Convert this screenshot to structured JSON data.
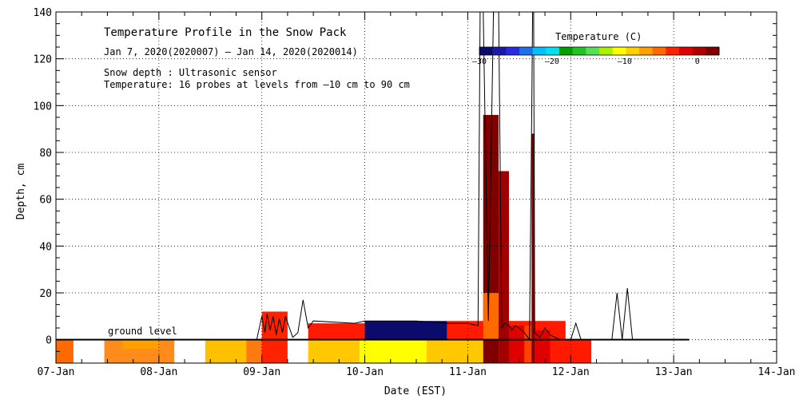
{
  "chart_data": {
    "type": "heatmap",
    "title": "Temperature Profile in the Snow Pack",
    "subtitle": "Jan  7, 2020(2020007) – Jan 14, 2020(2020014)",
    "notes": [
      "Snow depth : Ultrasonic sensor",
      "Temperature: 16 probes at levels from –10 cm to 90 cm"
    ],
    "xlabel": "Date (EST)",
    "ylabel": "Depth, cm",
    "xlim": [
      0,
      7
    ],
    "ylim": [
      -10,
      140
    ],
    "x_ticks": [
      {
        "x": 0,
        "label": "07-Jan"
      },
      {
        "x": 1,
        "label": "08-Jan"
      },
      {
        "x": 2,
        "label": "09-Jan"
      },
      {
        "x": 3,
        "label": "10-Jan"
      },
      {
        "x": 4,
        "label": "11-Jan"
      },
      {
        "x": 5,
        "label": "12-Jan"
      },
      {
        "x": 6,
        "label": "13-Jan"
      },
      {
        "x": 7,
        "label": "14-Jan"
      }
    ],
    "y_ticks": [
      {
        "y": 0,
        "label": "0"
      },
      {
        "y": 20,
        "label": "20"
      },
      {
        "y": 40,
        "label": "40"
      },
      {
        "y": 60,
        "label": "60"
      },
      {
        "y": 80,
        "label": "80"
      },
      {
        "y": 100,
        "label": "100"
      },
      {
        "y": 120,
        "label": "120"
      },
      {
        "y": 140,
        "label": "140"
      }
    ],
    "grid": true,
    "ground_level_label": "ground level",
    "colorbar": {
      "title": "Temperature (C)",
      "range": [
        -30,
        3
      ],
      "tick_labels": [
        {
          "v": -30,
          "label": "–30"
        },
        {
          "v": -20,
          "label": "–20"
        },
        {
          "v": -10,
          "label": "–10"
        },
        {
          "v": 0,
          "label": "0"
        }
      ],
      "colors": [
        "#0b0b6e",
        "#1a1aa8",
        "#2a2ae6",
        "#1f6fe8",
        "#00bfff",
        "#00e0f0",
        "#00a000",
        "#22c422",
        "#55e055",
        "#aaf000",
        "#ffff00",
        "#ffd000",
        "#ffa000",
        "#ff6a00",
        "#ff2200",
        "#e00000",
        "#b00000",
        "#800000"
      ]
    },
    "temperature_cells": [
      {
        "x0": 0.0,
        "x1": 0.17,
        "y0": -10,
        "y1": 0,
        "color": "#ff6a00"
      },
      {
        "x0": 0.47,
        "x1": 1.15,
        "y0": -10,
        "y1": 0,
        "color": "#ff8c1a"
      },
      {
        "x0": 0.65,
        "x1": 1.0,
        "y0": -4,
        "y1": 0,
        "color": "#ffa000"
      },
      {
        "x0": 1.45,
        "x1": 2.0,
        "y0": -10,
        "y1": 0,
        "color": "#ffc000"
      },
      {
        "x0": 1.85,
        "x1": 2.25,
        "y0": -10,
        "y1": 0,
        "color": "#ff7a10"
      },
      {
        "x0": 2.0,
        "x1": 2.25,
        "y0": -10,
        "y1": 12,
        "color": "#ff2200"
      },
      {
        "x0": 2.25,
        "x1": 2.45,
        "y0": -10,
        "y1": 0,
        "color": "#ffffff"
      },
      {
        "x0": 2.45,
        "x1": 2.95,
        "y0": -10,
        "y1": 0,
        "color": "#ffc800"
      },
      {
        "x0": 2.45,
        "x1": 3.0,
        "y0": 0,
        "y1": 7,
        "color": "#ff1a00"
      },
      {
        "x0": 2.95,
        "x1": 3.95,
        "y0": -10,
        "y1": 0,
        "color": "#ffff00"
      },
      {
        "x0": 3.0,
        "x1": 3.8,
        "y0": 0,
        "y1": 8,
        "color": "#0b0b6e"
      },
      {
        "x0": 3.8,
        "x1": 4.95,
        "y0": 0,
        "y1": 8,
        "color": "#ff1a00"
      },
      {
        "x0": 3.6,
        "x1": 4.4,
        "y0": -10,
        "y1": 0,
        "color": "#ffc800"
      },
      {
        "x0": 4.4,
        "x1": 5.0,
        "y0": -10,
        "y1": 0,
        "color": "#ff4000"
      },
      {
        "x0": 4.7,
        "x1": 5.2,
        "y0": -10,
        "y1": 0,
        "color": "#ff1a00"
      },
      {
        "x0": 4.15,
        "x1": 4.3,
        "y0": -10,
        "y1": 96,
        "color": "#800000"
      },
      {
        "x0": 4.15,
        "x1": 4.3,
        "y0": 0,
        "y1": 20,
        "color": "#ff6a00"
      },
      {
        "x0": 4.3,
        "x1": 4.4,
        "y0": -10,
        "y1": 72,
        "color": "#a00000"
      },
      {
        "x0": 4.4,
        "x1": 4.55,
        "y0": -10,
        "y1": 6,
        "color": "#e00000"
      },
      {
        "x0": 4.55,
        "x1": 4.62,
        "y0": -10,
        "y1": 6,
        "color": "#ff4000"
      },
      {
        "x0": 4.62,
        "x1": 4.65,
        "y0": -10,
        "y1": 88,
        "color": "#800000"
      },
      {
        "x0": 4.65,
        "x1": 4.8,
        "y0": -10,
        "y1": 4,
        "color": "#e00000"
      }
    ],
    "snow_depth": {
      "name": "Snow depth",
      "x": [
        0.0,
        1.95,
        2.0,
        2.03,
        2.05,
        2.08,
        2.11,
        2.14,
        2.17,
        2.2,
        2.23,
        2.26,
        2.3,
        2.35,
        2.4,
        2.45,
        2.5,
        2.9,
        3.0,
        3.5,
        3.8,
        4.0,
        4.1,
        4.12,
        4.15,
        4.2,
        4.25,
        4.3,
        4.33,
        4.36,
        4.4,
        4.43,
        4.46,
        4.5,
        4.55,
        4.6,
        4.62,
        4.63,
        4.64,
        4.65,
        4.7,
        4.75,
        4.8,
        4.9,
        5.0,
        5.05,
        5.1,
        5.2,
        5.4,
        5.45,
        5.5,
        5.55,
        5.6,
        5.65,
        6.15
      ],
      "y": [
        0,
        0,
        10,
        3,
        11,
        4,
        10,
        2,
        9,
        3,
        10,
        6,
        1,
        3,
        17,
        5,
        8,
        7,
        8,
        8,
        7,
        7,
        6,
        140,
        140,
        8,
        140,
        140,
        5,
        7,
        6,
        4,
        6,
        5,
        3,
        0,
        90,
        140,
        140,
        3,
        1,
        5,
        2,
        0,
        0,
        7,
        0,
        0,
        0,
        20,
        0,
        22,
        0,
        0,
        0
      ]
    }
  }
}
